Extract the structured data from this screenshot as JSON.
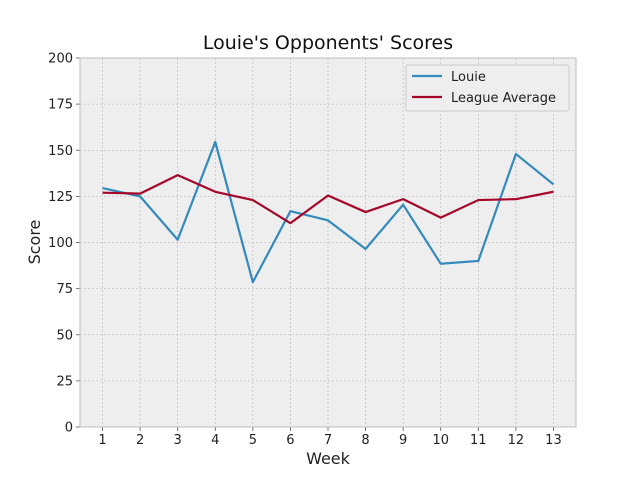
{
  "chart_data": {
    "type": "line",
    "title": "Louie's Opponents' Scores",
    "xlabel": "Week",
    "ylabel": "Score",
    "x": [
      1,
      2,
      3,
      4,
      5,
      6,
      7,
      8,
      9,
      10,
      11,
      12,
      13
    ],
    "ylim": [
      0,
      200
    ],
    "yticks": [
      0,
      25,
      50,
      75,
      100,
      125,
      150,
      175,
      200
    ],
    "grid": true,
    "legend_position": "top-right",
    "series": [
      {
        "name": "Louie",
        "color": "#348ABD",
        "values": [
          129.5,
          125.0,
          101.5,
          154.5,
          78.5,
          117.0,
          112.0,
          96.5,
          120.5,
          88.5,
          90.0,
          148.0,
          131.5
        ]
      },
      {
        "name": "League Average",
        "color": "#A60628",
        "values": [
          127.0,
          126.5,
          136.5,
          127.5,
          123.0,
          110.5,
          125.5,
          116.5,
          123.5,
          113.5,
          123.0,
          123.5,
          127.5
        ]
      }
    ]
  }
}
